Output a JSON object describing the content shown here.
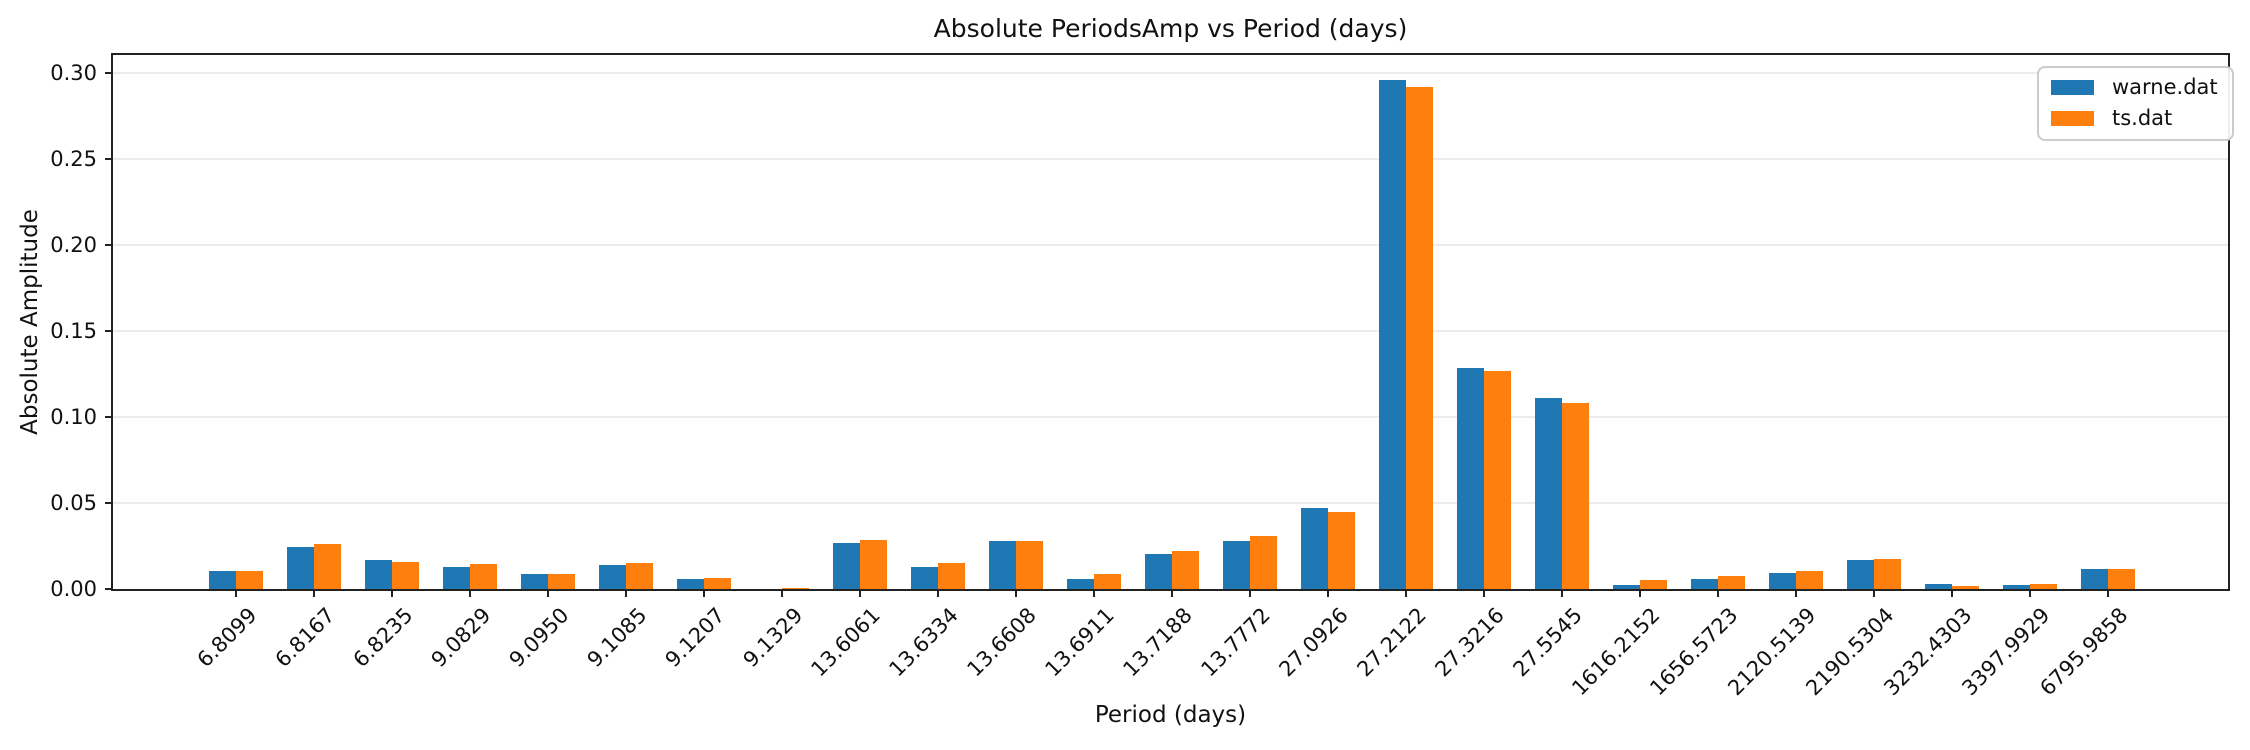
{
  "chart_data": {
    "type": "bar",
    "title": "Absolute PeriodsAmp vs Period (days)",
    "xlabel": "Period (days)",
    "ylabel": "Absolute Amplitude",
    "ylim": [
      0,
      0.3105
    ],
    "yticks": [
      0.0,
      0.05,
      0.1,
      0.15,
      0.2,
      0.25,
      0.3
    ],
    "ytick_labels": [
      "0.00",
      "0.05",
      "0.10",
      "0.15",
      "0.20",
      "0.25",
      "0.30"
    ],
    "grid": "horizontal",
    "legend_position": "upper right",
    "bar_group_width": 0.7,
    "categories": [
      "6.8099",
      "6.8167",
      "6.8235",
      "9.0829",
      "9.0950",
      "9.1085",
      "9.1207",
      "9.1329",
      "13.6061",
      "13.6334",
      "13.6608",
      "13.6911",
      "13.7188",
      "13.7772",
      "27.0926",
      "27.2122",
      "27.3216",
      "27.5545",
      "1616.2152",
      "1656.5723",
      "2120.5139",
      "2190.5304",
      "3232.4303",
      "3397.9929",
      "6795.9858"
    ],
    "series": [
      {
        "name": "warne.dat",
        "color": "#1f77b4",
        "values": [
          0.0104,
          0.0245,
          0.0167,
          0.0128,
          0.0085,
          0.0141,
          0.006,
          0.0002,
          0.0269,
          0.013,
          0.0281,
          0.006,
          0.0206,
          0.0278,
          0.047,
          0.2958,
          0.1285,
          0.111,
          0.0023,
          0.0058,
          0.0093,
          0.0168,
          0.0027,
          0.0023,
          0.0114
        ]
      },
      {
        "name": "ts.dat",
        "color": "#ff7f0e",
        "values": [
          0.0106,
          0.0263,
          0.0159,
          0.0147,
          0.009,
          0.015,
          0.0062,
          0.0008,
          0.0285,
          0.0153,
          0.0281,
          0.0085,
          0.0219,
          0.031,
          0.0449,
          0.2921,
          0.127,
          0.108,
          0.0054,
          0.0077,
          0.0105,
          0.0176,
          0.0019,
          0.0027,
          0.0114
        ]
      }
    ]
  }
}
